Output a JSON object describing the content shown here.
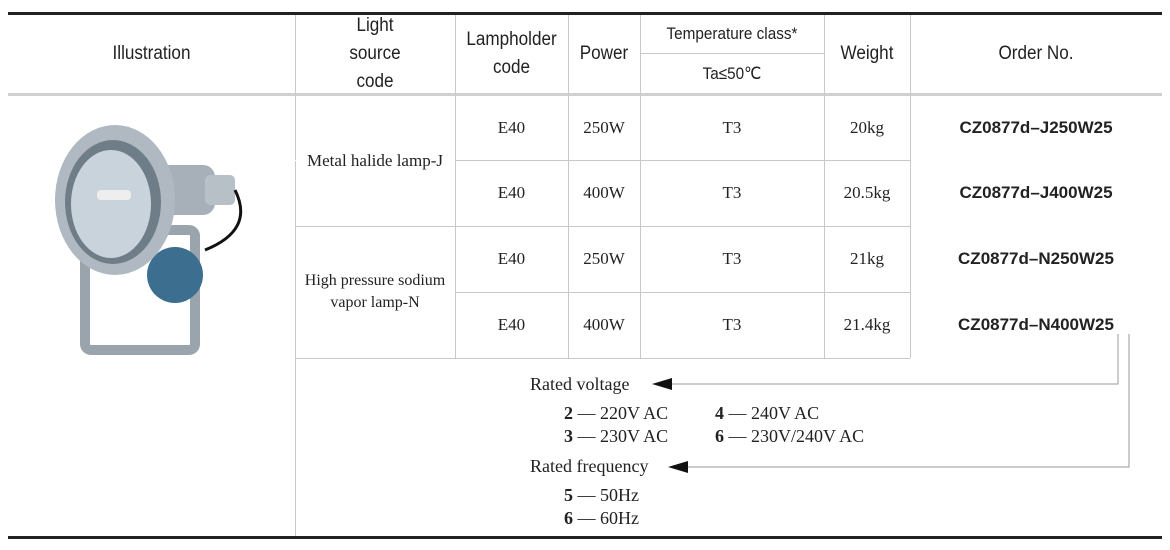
{
  "headers": {
    "illustration": "Illustration",
    "light_source": "Light source code",
    "lampholder": "Lampholder code",
    "power": "Power",
    "temperature": "Temperature class*",
    "temperature_sub": "Ta≤50℃",
    "weight": "Weight",
    "order": "Order No."
  },
  "groups": [
    "Metal halide lamp-J",
    "High pressure sodium vapor lamp-N"
  ],
  "rows": [
    {
      "lampholder": "E40",
      "power": "250W",
      "temp": "T3",
      "weight": "20kg",
      "order": "CZ0877d–J250W25"
    },
    {
      "lampholder": "E40",
      "power": "400W",
      "temp": "T3",
      "weight": "20.5kg",
      "order": "CZ0877d–J400W25"
    },
    {
      "lampholder": "E40",
      "power": "250W",
      "temp": "T3",
      "weight": "21kg",
      "order": "CZ0877d–N250W25"
    },
    {
      "lampholder": "E40",
      "power": "400W",
      "temp": "T3",
      "weight": "21.4kg",
      "order": "CZ0877d–N400W25"
    }
  ],
  "legend": {
    "voltage_title": "Rated voltage",
    "voltage": [
      {
        "code": "2",
        "text": "— 220V  AC"
      },
      {
        "code": "4",
        "text": "— 240V  AC"
      },
      {
        "code": "3",
        "text": "— 230V  AC"
      },
      {
        "code": "6",
        "text": "— 230V/240V  AC"
      }
    ],
    "frequency_title": "Rated frequency",
    "frequency": [
      {
        "code": "5",
        "text": "— 50Hz"
      },
      {
        "code": "6",
        "text": "— 60Hz"
      }
    ]
  }
}
